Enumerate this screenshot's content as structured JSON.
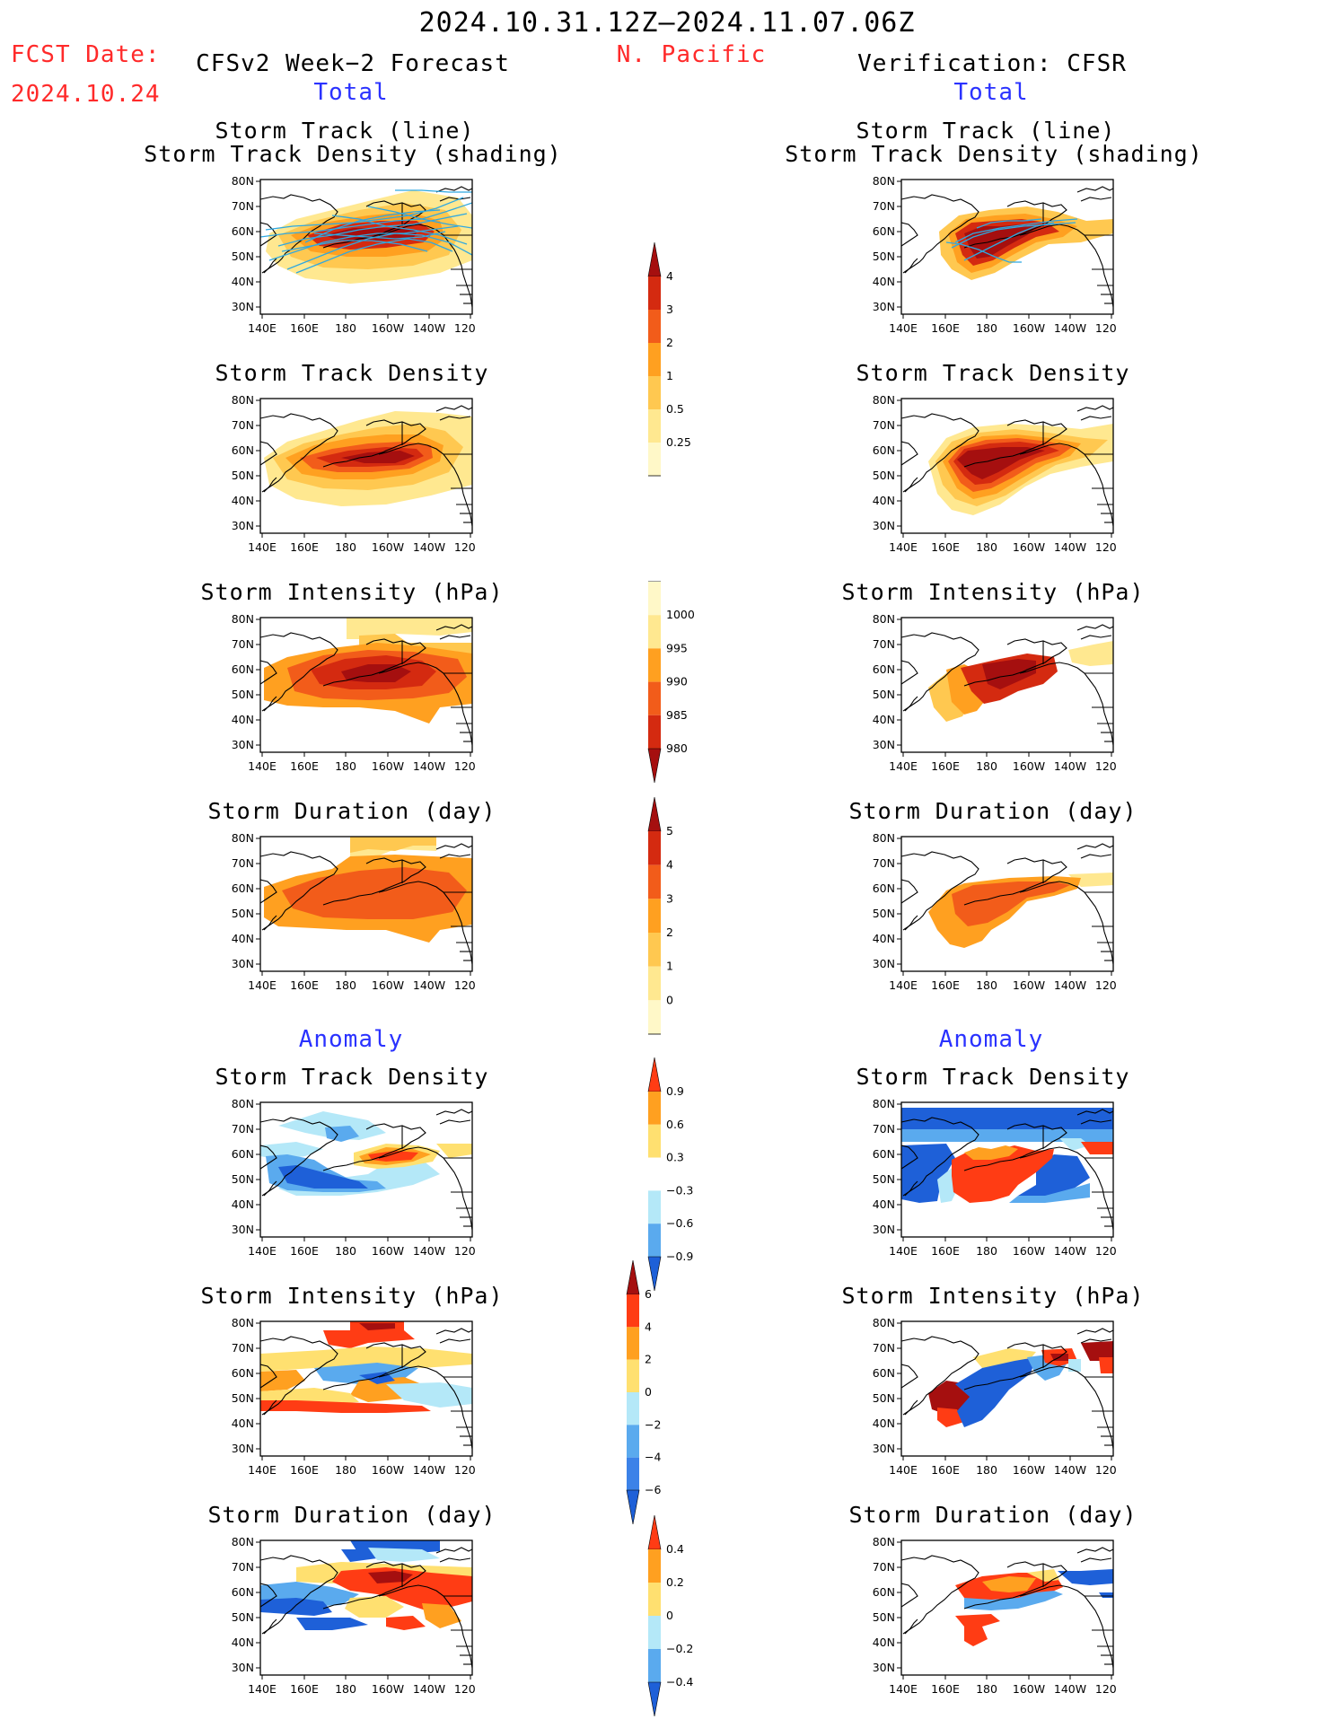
{
  "header": {
    "period": "2024.10.31.12Z–2024.11.07.06Z",
    "region": "N. Pacific",
    "fcst_label": "FCST Date:",
    "fcst_date": "2024.10.24",
    "left_title": "CFSv2 Week−2 Forecast",
    "right_title": "Verification: CFSR",
    "left_total": "Total",
    "right_total": "Total",
    "left_anomaly": "Anomaly",
    "right_anomaly": "Anomaly"
  },
  "axes": {
    "lat_labels": [
      "80N",
      "70N",
      "60N",
      "50N",
      "40N",
      "30N"
    ],
    "lon_labels": [
      "140E",
      "160E",
      "180",
      "160W",
      "140W",
      "120W"
    ]
  },
  "panel_titles": {
    "track_line": "Storm Track (line)",
    "track_shading": "Storm Track Density (shading)",
    "density": "Storm Track Density",
    "intensity": "Storm Intensity (hPa)",
    "duration": "Storm Duration (day)"
  },
  "colorbars": {
    "density": {
      "labels": [
        "4",
        "3",
        "2",
        "1",
        "0.5",
        "0.25"
      ],
      "colors": [
        "#a50f0f",
        "#d42a10",
        "#f25c1a",
        "#ffa020",
        "#ffc850",
        "#ffe890",
        "#fff8c8"
      ]
    },
    "intensity": {
      "labels": [
        "1000",
        "995",
        "990",
        "985",
        "980"
      ],
      "colors": [
        "#fff8c8",
        "#ffe890",
        "#ffa020",
        "#f25c1a",
        "#d42a10",
        "#a50f0f"
      ]
    },
    "duration": {
      "labels": [
        "5",
        "4",
        "3",
        "2",
        "1",
        "0"
      ],
      "colors": [
        "#a50f0f",
        "#d42a10",
        "#f25c1a",
        "#ffa020",
        "#ffc850",
        "#ffe890",
        "#fff8c8"
      ]
    },
    "anom_density": {
      "labels": [
        "0.9",
        "0.6",
        "0.3",
        "−0.3",
        "−0.6",
        "−0.9"
      ],
      "colors": [
        "#ff3c14",
        "#ffa020",
        "#ffe070",
        "#ffffff",
        "#b4e8f8",
        "#5aaaee",
        "#1e60d8"
      ]
    },
    "anom_intensity": {
      "labels": [
        "6",
        "4",
        "2",
        "0",
        "−2",
        "−4",
        "−6"
      ],
      "colors": [
        "#a50f0f",
        "#ff3c14",
        "#ffa020",
        "#ffe070",
        "#b4e8f8",
        "#5aaaee",
        "#3c82e8",
        "#1e60d8"
      ]
    },
    "anom_duration": {
      "labels": [
        "0.4",
        "0.2",
        "0",
        "−0.2",
        "−0.4"
      ],
      "colors": [
        "#ff3c14",
        "#ffa020",
        "#ffe070",
        "#b4e8f8",
        "#5aaaee",
        "#1e60d8"
      ]
    }
  },
  "map_colors": {
    "total": [
      "#fff8c8",
      "#ffe890",
      "#ffc850",
      "#ffa020",
      "#f25c1a",
      "#d42a10",
      "#a50f0f"
    ],
    "anom": [
      "#1e60d8",
      "#5aaaee",
      "#b4e8f8",
      "#ffe070",
      "#ffa020",
      "#ff3c14",
      "#a50f0f"
    ],
    "track": "#2fa8e0"
  }
}
